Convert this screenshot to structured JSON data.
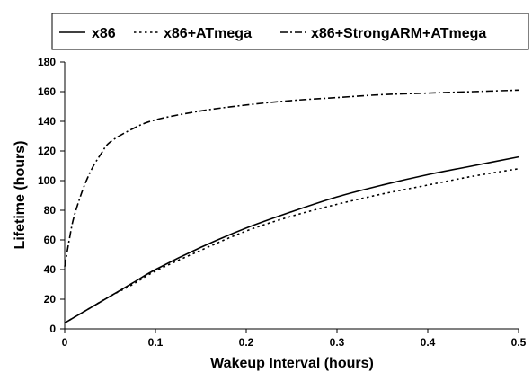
{
  "chart_data": {
    "type": "line",
    "title": "",
    "xlabel": "Wakeup Interval (hours)",
    "ylabel": "Lifetime (hours)",
    "xlim": [
      0,
      0.5
    ],
    "ylim": [
      0,
      180
    ],
    "x_ticks": [
      0,
      0.1,
      0.2,
      0.3,
      0.4,
      0.5
    ],
    "y_ticks": [
      0,
      20,
      40,
      60,
      80,
      100,
      120,
      140,
      160,
      180
    ],
    "x_tick_labels": [
      "0",
      "0.1",
      "0.2",
      "0.3",
      "0.4",
      "0.5"
    ],
    "y_tick_labels": [
      "0",
      "20",
      "40",
      "60",
      "80",
      "100",
      "120",
      "140",
      "160",
      "180"
    ],
    "grid": false,
    "legend_position": "top",
    "series": [
      {
        "name": "x86",
        "line_style": "solid",
        "color": "#000000",
        "x": [
          0,
          0.025,
          0.05,
          0.075,
          0.1,
          0.15,
          0.2,
          0.25,
          0.3,
          0.35,
          0.4,
          0.45,
          0.5
        ],
        "y": [
          4,
          13,
          22,
          31,
          40,
          55,
          68,
          79,
          89,
          97,
          104,
          110,
          116
        ]
      },
      {
        "name": "x86+ATmega",
        "line_style": "dotted",
        "color": "#000000",
        "x": [
          0,
          0.025,
          0.05,
          0.075,
          0.1,
          0.15,
          0.2,
          0.25,
          0.3,
          0.35,
          0.4,
          0.45,
          0.5
        ],
        "y": [
          4,
          13,
          22,
          30,
          39,
          53,
          66,
          76,
          84,
          91,
          97,
          103,
          108
        ]
      },
      {
        "name": "x86+StrongARM+ATmega",
        "line_style": "dashdot",
        "color": "#000000",
        "x": [
          0,
          0.005,
          0.01,
          0.02,
          0.03,
          0.04,
          0.05,
          0.075,
          0.1,
          0.15,
          0.2,
          0.25,
          0.3,
          0.35,
          0.4,
          0.45,
          0.5
        ],
        "y": [
          42,
          60,
          75,
          94,
          108,
          118,
          126,
          135,
          141,
          147,
          151,
          154,
          156,
          158,
          159,
          160,
          161
        ]
      }
    ]
  }
}
